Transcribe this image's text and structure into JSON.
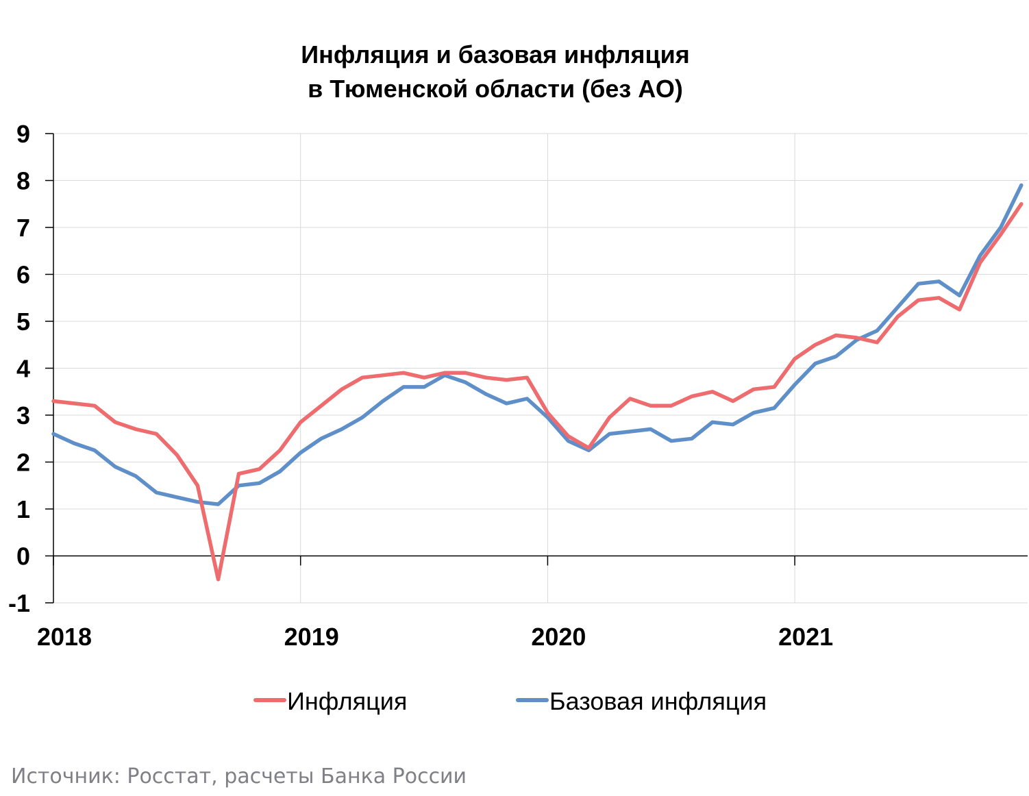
{
  "chart_data": {
    "type": "line",
    "title_lines": [
      "Инфляция и базовая инфляция",
      "в  Тюменской области (без АО)"
    ],
    "x": [
      "2018-01",
      "2018-02",
      "2018-03",
      "2018-04",
      "2018-05",
      "2018-06",
      "2018-07",
      "2018-08",
      "2018-09",
      "2018-10",
      "2018-11",
      "2018-12",
      "2019-01",
      "2019-02",
      "2019-03",
      "2019-04",
      "2019-05",
      "2019-06",
      "2019-07",
      "2019-08",
      "2019-09",
      "2019-10",
      "2019-11",
      "2019-12",
      "2020-01",
      "2020-02",
      "2020-03",
      "2020-04",
      "2020-05",
      "2020-06",
      "2020-07",
      "2020-08",
      "2020-09",
      "2020-10",
      "2020-11",
      "2020-12",
      "2021-01",
      "2021-02",
      "2021-03",
      "2021-04",
      "2021-05",
      "2021-06",
      "2021-07",
      "2021-08",
      "2021-09",
      "2021-10",
      "2021-11",
      "2021-12"
    ],
    "x_tick_labels": [
      "2018",
      "2019",
      "2020",
      "2021"
    ],
    "y_tick_labels": [
      "9",
      "8",
      "7",
      "6",
      "5",
      "4",
      "3",
      "2",
      "1",
      "0",
      "-1"
    ],
    "ylim": [
      -1,
      9
    ],
    "grid": true,
    "legend_position": "bottom",
    "series": [
      {
        "name": "Инфляция",
        "color": "#ee6b6e",
        "values": [
          3.3,
          3.25,
          3.2,
          2.85,
          2.7,
          2.6,
          2.15,
          1.5,
          -0.5,
          1.75,
          1.85,
          2.25,
          2.85,
          3.2,
          3.55,
          3.8,
          3.85,
          3.9,
          3.8,
          3.9,
          3.9,
          3.8,
          3.75,
          3.8,
          3.05,
          2.55,
          2.3,
          2.95,
          3.35,
          3.2,
          3.2,
          3.4,
          3.5,
          3.3,
          3.55,
          3.6,
          4.2,
          4.5,
          4.7,
          4.65,
          4.55,
          5.1,
          5.45,
          5.5,
          5.25,
          6.25,
          6.85,
          7.5
        ]
      },
      {
        "name": "Базовая инфляция",
        "color": "#5f8fc8",
        "values": [
          2.6,
          2.4,
          2.25,
          1.9,
          1.7,
          1.35,
          1.25,
          1.15,
          1.1,
          1.5,
          1.55,
          1.8,
          2.2,
          2.5,
          2.7,
          2.95,
          3.3,
          3.6,
          3.6,
          3.85,
          3.7,
          3.45,
          3.25,
          3.35,
          2.95,
          2.45,
          2.25,
          2.6,
          2.65,
          2.7,
          2.45,
          2.5,
          2.85,
          2.8,
          3.05,
          3.15,
          3.65,
          4.1,
          4.25,
          4.6,
          4.8,
          5.3,
          5.8,
          5.85,
          5.55,
          6.4,
          7.0,
          7.9
        ]
      }
    ]
  },
  "source_text": "Источник: Росстат, расчеты Банка России"
}
